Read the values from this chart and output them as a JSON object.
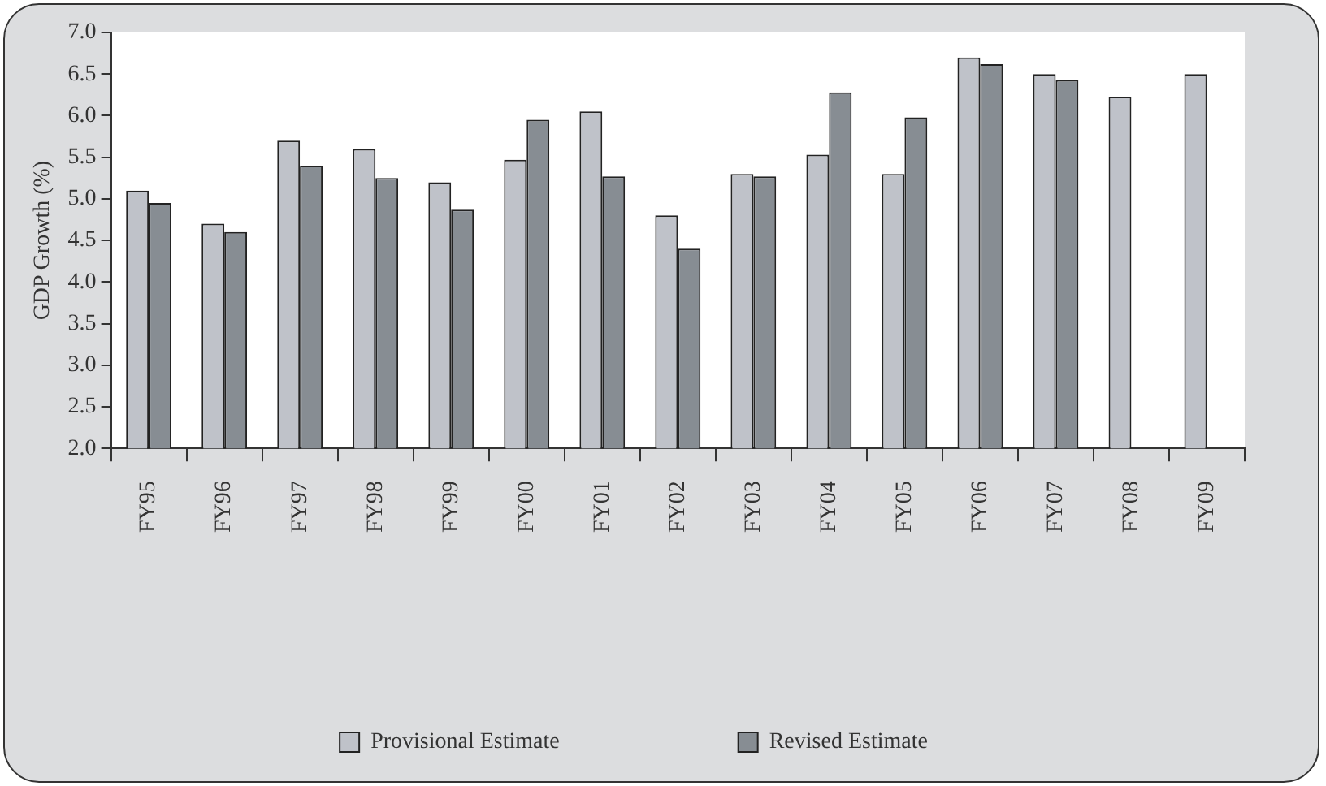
{
  "chart_data": {
    "type": "bar",
    "ylabel": "GDP Growth (%)",
    "categories": [
      "FY95",
      "FY96",
      "FY97",
      "FY98",
      "FY99",
      "FY00",
      "FY01",
      "FY02",
      "FY03",
      "FY04",
      "FY05",
      "FY06",
      "FY07",
      "FY08",
      "FY09"
    ],
    "series": [
      {
        "name": "Provisional Estimate",
        "color": "#bfc2c9",
        "values": [
          5.1,
          4.7,
          5.7,
          5.6,
          5.2,
          5.47,
          6.05,
          4.8,
          5.3,
          5.53,
          5.3,
          6.7,
          6.5,
          6.23,
          6.5
        ]
      },
      {
        "name": "Revised Estimate",
        "color": "#878d93",
        "values": [
          4.95,
          4.6,
          5.4,
          5.25,
          4.87,
          5.95,
          5.27,
          4.4,
          5.27,
          6.28,
          5.98,
          6.62,
          6.43,
          null,
          null
        ]
      }
    ],
    "ylim": [
      2,
      7
    ],
    "yticks": [
      {
        "value": 2,
        "label": "2.0"
      },
      {
        "value": 2.5,
        "label": "2.5"
      },
      {
        "value": 3,
        "label": "3.0"
      },
      {
        "value": 3.5,
        "label": "3.5"
      },
      {
        "value": 4,
        "label": "4.0"
      },
      {
        "value": 4.5,
        "label": "4.5"
      },
      {
        "value": 5,
        "label": "5.0"
      },
      {
        "value": 5.5,
        "label": "5.5"
      },
      {
        "value": 6,
        "label": "6.0"
      },
      {
        "value": 6.5,
        "label": "6.5"
      },
      {
        "value": 7,
        "label": "7.0"
      }
    ],
    "grid": false,
    "legend": "bottom"
  }
}
